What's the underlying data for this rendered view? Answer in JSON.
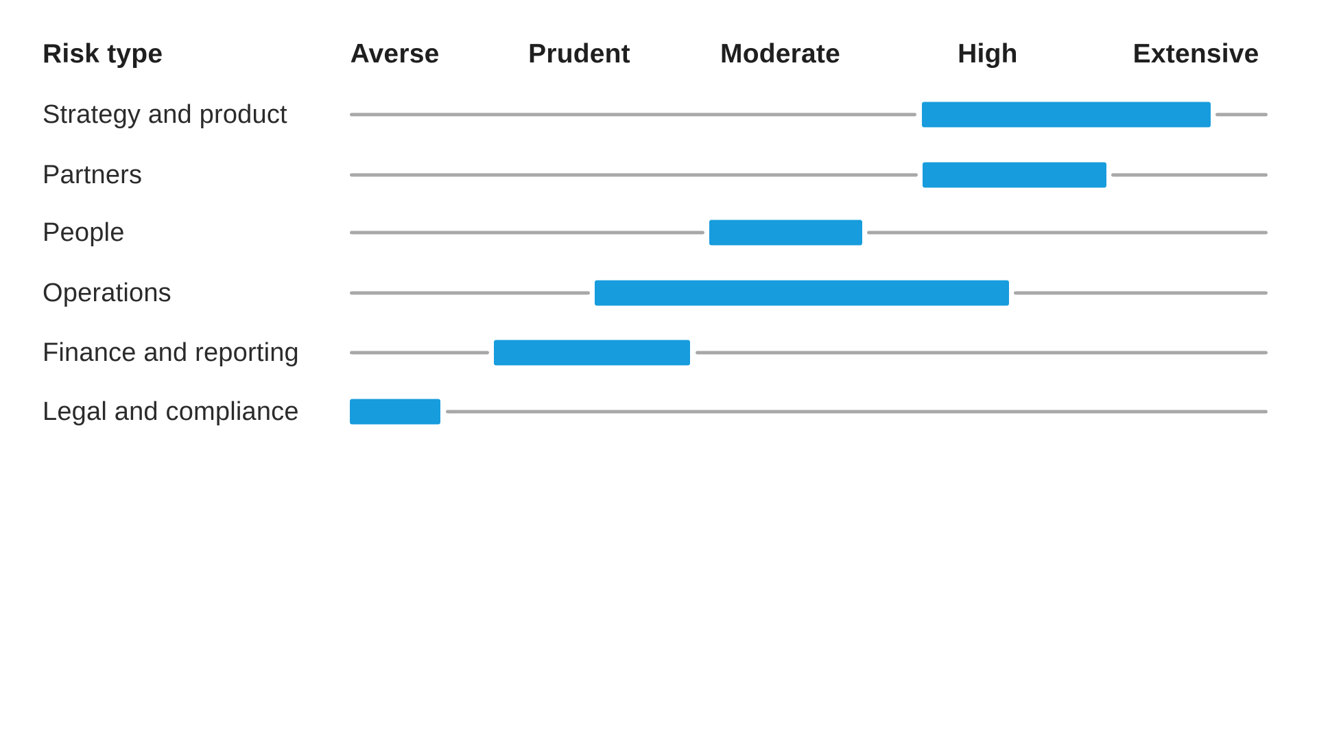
{
  "chart": {
    "risk_type_header": "Risk type"
  },
  "chart_data": {
    "type": "range-bar",
    "x_scale": {
      "labels": [
        "Averse",
        "Prudent",
        "Moderate",
        "High",
        "Extensive"
      ],
      "label_positions_pct": [
        4.9,
        25.0,
        46.9,
        69.5,
        92.2
      ],
      "scale_values": [
        1,
        2,
        3,
        4,
        5
      ]
    },
    "rows": [
      {
        "label": "Strategy and product",
        "range_pct": [
          62.3,
          93.8
        ],
        "range_scale": [
          3.6,
          5.1
        ]
      },
      {
        "label": "Partners",
        "range_pct": [
          62.4,
          82.4
        ],
        "range_scale": [
          3.6,
          4.6
        ]
      },
      {
        "label": "People",
        "range_pct": [
          39.2,
          55.8
        ],
        "range_scale": [
          2.6,
          3.3
        ]
      },
      {
        "label": "Operations",
        "range_pct": [
          26.7,
          71.8
        ],
        "range_scale": [
          2.0,
          4.1
        ]
      },
      {
        "label": "Finance and reporting",
        "range_pct": [
          15.7,
          37.1
        ],
        "range_scale": [
          1.5,
          2.5
        ]
      },
      {
        "label": "Legal and compliance",
        "range_pct": [
          0.0,
          9.9
        ],
        "range_scale": [
          0.8,
          1.2
        ]
      }
    ],
    "legend_position": "none",
    "grid": "off"
  },
  "colors": {
    "bar": "#179CDD",
    "track": "#A8A8A8",
    "header_text": "#1F1F1F",
    "label_text": "#2B2B2B",
    "background": "#FFFFFF"
  }
}
